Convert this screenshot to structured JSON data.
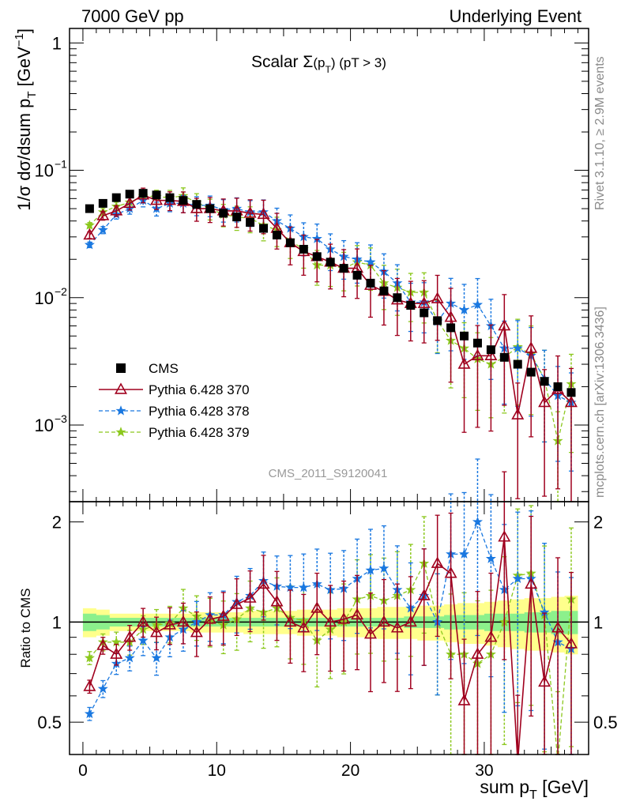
{
  "header": {
    "left": "7000 GeV pp",
    "right": "Underlying Event"
  },
  "side_labels": {
    "upper": "Rivet 3.1.10, ≥ 2.9M events",
    "lower": "mcplots.cern.ch [arXiv:1306.3436]"
  },
  "analysis_id": "CMS_2011_S9120041",
  "colors": {
    "cms": "#000000",
    "p370": "#a0001e",
    "p378": "#1a78e0",
    "p379": "#8cc81e",
    "band_inner": "#8cf08c",
    "band_outer": "#ffff8c"
  },
  "chart_data": [
    {
      "type": "scatter",
      "title": "Scalar Σ(p_T) (pT > 3)",
      "ylabel": "1/σ dσ/dsum p_T [GeV^-1]",
      "xlim": [
        -1.0,
        37.8
      ],
      "ylim": [
        0.00025,
        1.3
      ],
      "yscale": "log",
      "yticks": [
        "1",
        "10^-1",
        "10^-2",
        "10^-3"
      ],
      "legend": [
        "CMS",
        "Pythia 6.428 370",
        "Pythia 6.428 378",
        "Pythia 6.428 379"
      ],
      "legend_position": "lower-left",
      "x": [
        0.5,
        1.5,
        2.5,
        3.5,
        4.5,
        5.5,
        6.5,
        7.5,
        8.5,
        9.5,
        10.5,
        11.5,
        12.5,
        13.5,
        14.5,
        15.5,
        16.5,
        17.5,
        18.5,
        19.5,
        20.5,
        21.5,
        22.5,
        23.5,
        24.5,
        25.5,
        26.5,
        27.5,
        28.5,
        29.5,
        30.5,
        31.5,
        32.5,
        33.5,
        34.5,
        35.5,
        36.5
      ],
      "series": [
        {
          "name": "CMS",
          "values": [
            0.05,
            0.055,
            0.061,
            0.065,
            0.066,
            0.064,
            0.061,
            0.058,
            0.054,
            0.05,
            0.046,
            0.043,
            0.039,
            0.035,
            0.031,
            0.027,
            0.024,
            0.021,
            0.019,
            0.017,
            0.015,
            0.013,
            0.0113,
            0.01,
            0.0087,
            0.0076,
            0.0066,
            0.0058,
            0.005,
            0.0044,
            0.0039,
            0.0034,
            0.003,
            0.0026,
            0.0022,
            0.002,
            0.0018
          ]
        },
        {
          "name": "Pythia 6.428 370",
          "values": [
            0.031,
            0.044,
            0.048,
            0.055,
            0.064,
            0.058,
            0.058,
            0.057,
            0.05,
            0.05,
            0.048,
            0.048,
            0.046,
            0.045,
            0.035,
            0.027,
            0.023,
            0.021,
            0.019,
            0.017,
            0.017,
            0.0125,
            0.0112,
            0.0096,
            0.009,
            0.009,
            0.0098,
            0.007,
            0.003,
            0.0035,
            0.0035,
            0.006,
            0.0012,
            0.004,
            0.0015,
            0.0019,
            0.0015
          ]
        },
        {
          "name": "Pythia 6.428 378",
          "values": [
            0.026,
            0.034,
            0.045,
            0.05,
            0.058,
            0.05,
            0.055,
            0.055,
            0.053,
            0.053,
            0.049,
            0.05,
            0.047,
            0.047,
            0.04,
            0.035,
            0.03,
            0.029,
            0.024,
            0.021,
            0.02,
            0.019,
            0.016,
            0.013,
            0.0092,
            0.0092,
            0.0065,
            0.009,
            0.008,
            0.0088,
            0.006,
            0.004,
            0.004,
            0.0035,
            0.0023,
            0.0017,
            0.0015
          ]
        },
        {
          "name": "Pythia 6.428 379",
          "values": [
            0.037,
            0.047,
            0.052,
            0.056,
            0.063,
            0.062,
            0.061,
            0.063,
            0.056,
            0.05,
            0.045,
            0.043,
            0.042,
            0.037,
            0.034,
            0.028,
            0.024,
            0.018,
            0.018,
            0.017,
            0.019,
            0.018,
            0.013,
            0.012,
            0.011,
            0.011,
            0.0066,
            0.0046,
            0.004,
            0.0033,
            0.003,
            0.0034,
            0.0041,
            0.0036,
            0.0023,
            0.00075,
            0.0021
          ]
        }
      ]
    },
    {
      "type": "scatter",
      "ylabel": "Ratio to CMS",
      "xlabel": "sum p_T [GeV]",
      "xlim": [
        -1.0,
        37.8
      ],
      "xticks": [
        0,
        10,
        20,
        30
      ],
      "ylim": [
        0.4,
        2.3
      ],
      "yscale": "log",
      "yticks": [
        0.5,
        1,
        2
      ],
      "x": [
        0.5,
        1.5,
        2.5,
        3.5,
        4.5,
        5.5,
        6.5,
        7.5,
        8.5,
        9.5,
        10.5,
        11.5,
        12.5,
        13.5,
        14.5,
        15.5,
        16.5,
        17.5,
        18.5,
        19.5,
        20.5,
        21.5,
        22.5,
        23.5,
        24.5,
        25.5,
        26.5,
        27.5,
        28.5,
        29.5,
        30.5,
        31.5,
        32.5,
        33.5,
        34.5,
        35.5,
        36.5
      ],
      "series": [
        {
          "name": "Pythia 6.428 370",
          "values": [
            0.64,
            0.85,
            0.8,
            0.9,
            1.0,
            0.93,
            0.98,
            1.0,
            0.93,
            1.02,
            1.04,
            1.13,
            1.18,
            1.3,
            1.15,
            1.0,
            0.96,
            1.1,
            1.0,
            1.02,
            1.05,
            0.92,
            1.0,
            0.96,
            1.0,
            1.2,
            1.5,
            1.4,
            0.58,
            0.8,
            0.9,
            1.8,
            0.38,
            1.3,
            0.66,
            0.96,
            0.86
          ]
        },
        {
          "name": "Pythia 6.428 378",
          "values": [
            0.53,
            0.63,
            0.75,
            0.78,
            0.88,
            0.78,
            0.9,
            0.95,
            1.0,
            1.05,
            1.05,
            1.15,
            1.2,
            1.33,
            1.28,
            1.27,
            1.27,
            1.3,
            1.25,
            1.26,
            1.35,
            1.43,
            1.45,
            1.25,
            1.1,
            1.2,
            1.0,
            1.6,
            1.6,
            2.0,
            1.55,
            1.25,
            1.35,
            1.35,
            1.07,
            0.87,
            0.83
          ]
        },
        {
          "name": "Pythia 6.428 379",
          "values": [
            0.78,
            0.87,
            0.87,
            0.87,
            0.95,
            0.98,
            0.99,
            1.1,
            1.04,
            1.01,
            0.98,
            1.02,
            1.1,
            1.07,
            1.1,
            1.03,
            1.01,
            0.88,
            0.95,
            1.0,
            1.17,
            1.2,
            1.16,
            1.2,
            1.25,
            1.5,
            1.0,
            0.8,
            0.8,
            0.75,
            0.8,
            1.0,
            1.38,
            1.4,
            1.05,
            0.38,
            1.17
          ]
        }
      ],
      "bands": {
        "inner_name": "CMS stat. uncertainty",
        "outer_name": "CMS total uncertainty",
        "inner_halfwidth": [
          0.06,
          0.05,
          0.03,
          0.03,
          0.03,
          0.03,
          0.03,
          0.03,
          0.03,
          0.03,
          0.03,
          0.03,
          0.03,
          0.03,
          0.03,
          0.03,
          0.03,
          0.03,
          0.03,
          0.03,
          0.03,
          0.03,
          0.03,
          0.03,
          0.04,
          0.04,
          0.04,
          0.05,
          0.05,
          0.05,
          0.06,
          0.06,
          0.06,
          0.07,
          0.07,
          0.08,
          0.08
        ],
        "outer_halfwidth": [
          0.1,
          0.09,
          0.06,
          0.06,
          0.06,
          0.06,
          0.06,
          0.06,
          0.07,
          0.07,
          0.07,
          0.07,
          0.08,
          0.08,
          0.08,
          0.08,
          0.09,
          0.09,
          0.09,
          0.1,
          0.1,
          0.1,
          0.11,
          0.11,
          0.11,
          0.12,
          0.12,
          0.13,
          0.14,
          0.14,
          0.15,
          0.16,
          0.17,
          0.18,
          0.18,
          0.19,
          0.2
        ]
      }
    }
  ]
}
